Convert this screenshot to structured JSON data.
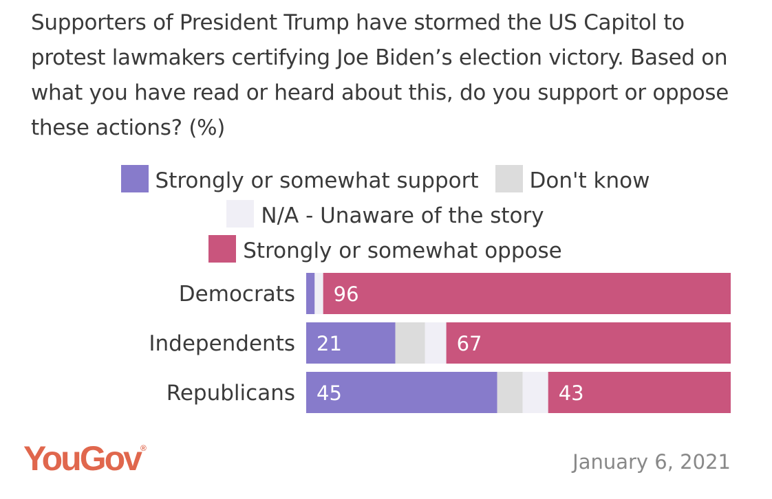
{
  "chart_data": {
    "type": "bar",
    "stacked": true,
    "orientation": "horizontal",
    "title": "Supporters of President Trump have stormed the US Capitol to protest lawmakers certifying Joe Biden’s election victory. Based on what you have read or heard about this, do you support or oppose these actions? (%)",
    "categories": [
      "Democrats",
      "Independents",
      "Republicans"
    ],
    "series": [
      {
        "name": "Strongly or somewhat support",
        "color": "#877bcb",
        "values": [
          2,
          21,
          45
        ],
        "labels": [
          "",
          "21",
          "45"
        ]
      },
      {
        "name": "Don't know",
        "color": "#dcdcdc",
        "values": [
          0,
          7,
          6
        ],
        "labels": [
          "",
          "",
          ""
        ]
      },
      {
        "name": "N/A - Unaware of the story",
        "color": "#f0eff6",
        "values": [
          2,
          5,
          6
        ],
        "labels": [
          "",
          "",
          ""
        ]
      },
      {
        "name": "Strongly or somewhat oppose",
        "color": "#c9557d",
        "values": [
          96,
          67,
          43
        ],
        "labels": [
          "96",
          "67",
          "43"
        ]
      }
    ],
    "xlim": [
      0,
      100
    ],
    "legend_position": "top"
  },
  "footer": {
    "brand": "YouGov",
    "date": "January 6, 2021"
  }
}
